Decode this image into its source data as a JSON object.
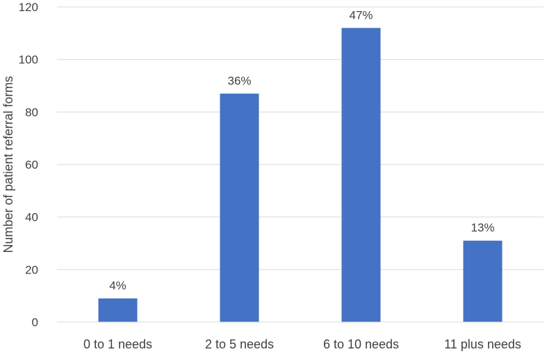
{
  "chart_data": {
    "type": "bar",
    "categories": [
      "0 to 1 needs",
      "2 to 5 needs",
      "6 to 10 needs",
      "11 plus needs"
    ],
    "values": [
      9,
      87,
      112,
      31
    ],
    "data_labels": [
      "4%",
      "36%",
      "47%",
      "13%"
    ],
    "ylabel": "Number of patient referral forms",
    "xlabel": "",
    "ylim": [
      0,
      120
    ],
    "yticks": [
      0,
      20,
      40,
      60,
      80,
      100,
      120
    ],
    "grid": true,
    "bar_color": "#4472C4",
    "grid_color": "#D9D9D9"
  }
}
